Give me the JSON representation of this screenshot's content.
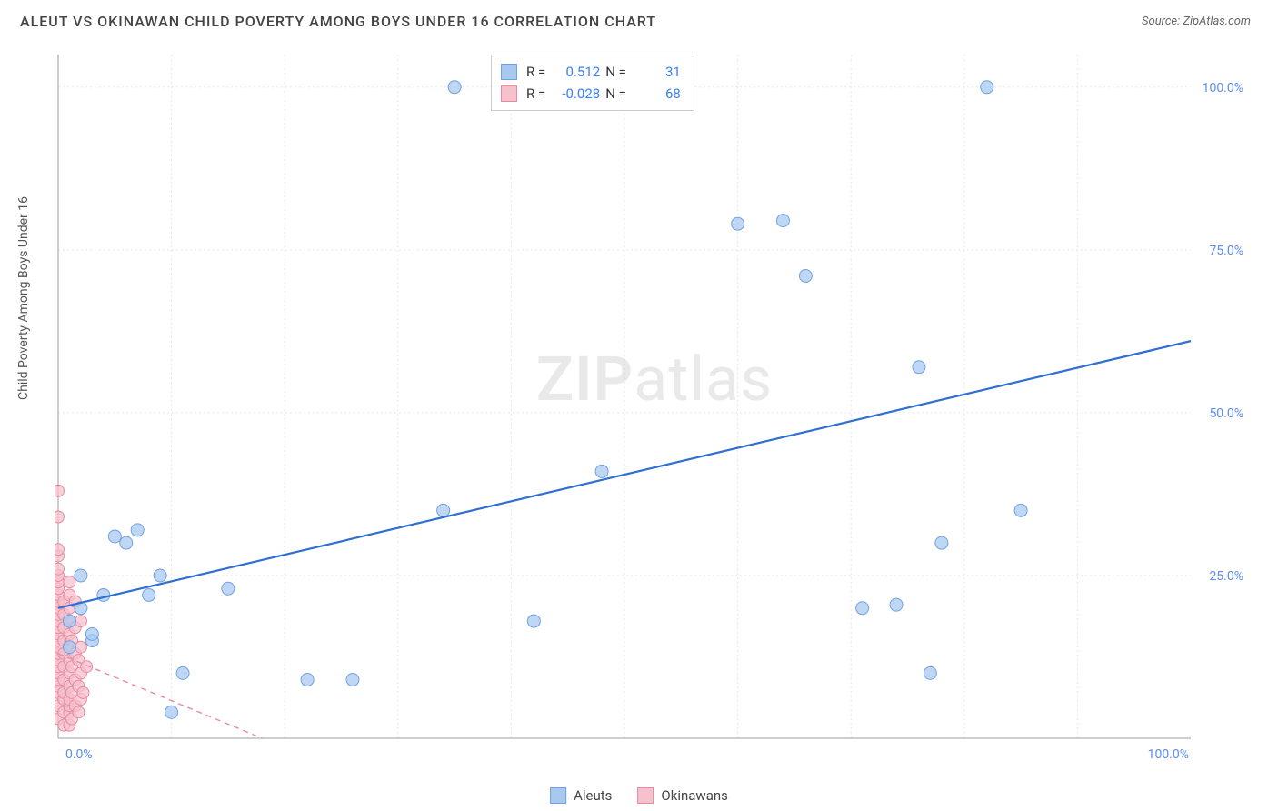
{
  "header": {
    "title": "ALEUT VS OKINAWAN CHILD POVERTY AMONG BOYS UNDER 16 CORRELATION CHART",
    "source": "Source: ZipAtlas.com"
  },
  "y_axis_label": "Child Poverty Among Boys Under 16",
  "watermark": {
    "bold": "ZIP",
    "rest": "atlas"
  },
  "chart": {
    "type": "scatter",
    "xlim": [
      0,
      100
    ],
    "ylim": [
      0,
      105
    ],
    "x_ticks": [
      0,
      100
    ],
    "x_tick_labels": [
      "0.0%",
      "100.0%"
    ],
    "y_ticks": [
      25,
      50,
      75,
      100
    ],
    "y_tick_labels": [
      "25.0%",
      "50.0%",
      "75.0%",
      "100.0%"
    ],
    "grid_color": "#e5e5e5",
    "axis_color": "#bdbdbd",
    "background_color": "#ffffff",
    "label_color": "#5b8def",
    "series": {
      "aleuts": {
        "label": "Aleuts",
        "marker_color": "#a9c8f0",
        "marker_stroke": "#6fa3e0",
        "marker_radius": 7,
        "line_color": "#2f6fd1",
        "line_width": 2.2,
        "line_dash": "none",
        "trend": {
          "x1": 0,
          "y1": 20,
          "x2": 100,
          "y2": 61
        },
        "points": [
          [
            1,
            18
          ],
          [
            1,
            14
          ],
          [
            2,
            25
          ],
          [
            2,
            20
          ],
          [
            3,
            15
          ],
          [
            3,
            16
          ],
          [
            4,
            22
          ],
          [
            5,
            31
          ],
          [
            6,
            30
          ],
          [
            7,
            32
          ],
          [
            8,
            22
          ],
          [
            9,
            25
          ],
          [
            10,
            4
          ],
          [
            11,
            10
          ],
          [
            15,
            23
          ],
          [
            22,
            9
          ],
          [
            26,
            9
          ],
          [
            34,
            35
          ],
          [
            35,
            100
          ],
          [
            42,
            18
          ],
          [
            48,
            41
          ],
          [
            60,
            79
          ],
          [
            64,
            79.5
          ],
          [
            66,
            71
          ],
          [
            71,
            20
          ],
          [
            74,
            20.5
          ],
          [
            76,
            57
          ],
          [
            77,
            10
          ],
          [
            78,
            30
          ],
          [
            82,
            100
          ],
          [
            85,
            35
          ]
        ]
      },
      "okinawans": {
        "label": "Okinawans",
        "marker_color": "#f6c0cc",
        "marker_stroke": "#e88aa2",
        "marker_radius": 6.5,
        "line_color": "#e88aa2",
        "line_width": 1.4,
        "line_dash": "6,5",
        "trend": {
          "x1": 0,
          "y1": 13,
          "x2": 18,
          "y2": 0
        },
        "points": [
          [
            0,
            3
          ],
          [
            0,
            5
          ],
          [
            0,
            7
          ],
          [
            0,
            8
          ],
          [
            0,
            9
          ],
          [
            0,
            10
          ],
          [
            0,
            11
          ],
          [
            0,
            12
          ],
          [
            0,
            13
          ],
          [
            0,
            14
          ],
          [
            0,
            15
          ],
          [
            0,
            16
          ],
          [
            0,
            17
          ],
          [
            0,
            18
          ],
          [
            0,
            19
          ],
          [
            0,
            20
          ],
          [
            0,
            21
          ],
          [
            0,
            22
          ],
          [
            0,
            23
          ],
          [
            0,
            24
          ],
          [
            0,
            25
          ],
          [
            0,
            26
          ],
          [
            0,
            28
          ],
          [
            0,
            29
          ],
          [
            0,
            34
          ],
          [
            0,
            38
          ],
          [
            0.5,
            2
          ],
          [
            0.5,
            4
          ],
          [
            0.5,
            6
          ],
          [
            0.5,
            7
          ],
          [
            0.5,
            9
          ],
          [
            0.5,
            11
          ],
          [
            0.5,
            13
          ],
          [
            0.5,
            15
          ],
          [
            0.5,
            17
          ],
          [
            0.5,
            19
          ],
          [
            0.5,
            21
          ],
          [
            1,
            2
          ],
          [
            1,
            4
          ],
          [
            1,
            5
          ],
          [
            1,
            6
          ],
          [
            1,
            8
          ],
          [
            1,
            10
          ],
          [
            1,
            12
          ],
          [
            1,
            14
          ],
          [
            1,
            16
          ],
          [
            1,
            18
          ],
          [
            1,
            20
          ],
          [
            1,
            22
          ],
          [
            1,
            24
          ],
          [
            1.2,
            3
          ],
          [
            1.2,
            7
          ],
          [
            1.2,
            11
          ],
          [
            1.2,
            15
          ],
          [
            1.5,
            5
          ],
          [
            1.5,
            9
          ],
          [
            1.5,
            13
          ],
          [
            1.5,
            17
          ],
          [
            1.5,
            21
          ],
          [
            1.8,
            4
          ],
          [
            1.8,
            8
          ],
          [
            1.8,
            12
          ],
          [
            2,
            6
          ],
          [
            2,
            10
          ],
          [
            2,
            14
          ],
          [
            2,
            18
          ],
          [
            2.2,
            7
          ],
          [
            2.5,
            11
          ]
        ]
      }
    }
  },
  "stats_box": {
    "rows": [
      {
        "swatch_fill": "#a9c8f0",
        "swatch_stroke": "#6fa3e0",
        "r_label": "R =",
        "r": "0.512",
        "n_label": "N =",
        "n": "31"
      },
      {
        "swatch_fill": "#f6c0cc",
        "swatch_stroke": "#e88aa2",
        "r_label": "R =",
        "r": "-0.028",
        "n_label": "N =",
        "n": "68"
      }
    ]
  },
  "bottom_legend": [
    {
      "swatch_fill": "#a9c8f0",
      "swatch_stroke": "#6fa3e0",
      "label": "Aleuts"
    },
    {
      "swatch_fill": "#f6c0cc",
      "swatch_stroke": "#e88aa2",
      "label": "Okinawans"
    }
  ]
}
